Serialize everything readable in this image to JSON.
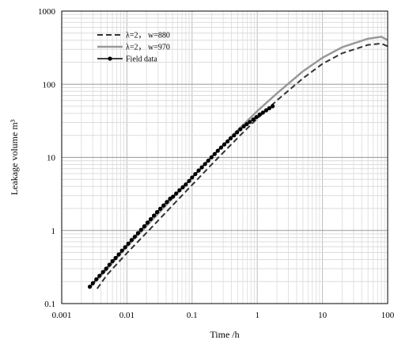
{
  "chart_data": {
    "type": "line",
    "title": "",
    "xlabel": "Time /h",
    "ylabel": "Leakage volume m³",
    "xscale": "log",
    "yscale": "log",
    "xlim": [
      0.001,
      100
    ],
    "ylim": [
      0.1,
      1000
    ],
    "x_ticks": [
      "0.001",
      "0.01",
      "0.1",
      "1",
      "10",
      "100"
    ],
    "y_ticks": [
      "0.1",
      "1",
      "10",
      "100",
      "1000"
    ],
    "grid": true,
    "legend_position": "top-left",
    "series": [
      {
        "name": "λ=2， w=880",
        "style": "dashed",
        "color": "#333333",
        "x": [
          0.0035,
          0.005,
          0.01,
          0.02,
          0.05,
          0.1,
          0.2,
          0.5,
          1,
          2,
          5,
          10,
          20,
          50,
          80,
          100
        ],
        "y": [
          0.16,
          0.25,
          0.49,
          0.93,
          2.2,
          4.2,
          8.0,
          18.5,
          34,
          60,
          120,
          190,
          265,
          345,
          360,
          330
        ]
      },
      {
        "name": "λ=2， w=970",
        "style": "solid",
        "color": "#999999",
        "x": [
          0.0028,
          0.005,
          0.01,
          0.02,
          0.05,
          0.1,
          0.2,
          0.5,
          1,
          2,
          5,
          10,
          20,
          50,
          80,
          100
        ],
        "y": [
          0.17,
          0.3,
          0.6,
          1.15,
          2.75,
          5.3,
          10.2,
          23.5,
          43,
          75,
          150,
          230,
          320,
          420,
          445,
          400
        ]
      },
      {
        "name": "Field data",
        "style": "line-marker",
        "color": "#000000",
        "x": [
          0.0027,
          0.003,
          0.0034,
          0.0038,
          0.0043,
          0.0048,
          0.0054,
          0.006,
          0.0067,
          0.0075,
          0.0084,
          0.0094,
          0.0105,
          0.0118,
          0.0132,
          0.0148,
          0.0165,
          0.0185,
          0.0207,
          0.0232,
          0.026,
          0.029,
          0.0325,
          0.0365,
          0.041,
          0.046,
          0.051,
          0.057,
          0.064,
          0.072,
          0.08,
          0.09,
          0.1,
          0.112,
          0.126,
          0.141,
          0.158,
          0.177,
          0.198,
          0.222,
          0.248,
          0.278,
          0.312,
          0.35,
          0.39,
          0.44,
          0.49,
          0.55,
          0.62,
          0.69,
          0.77,
          0.87,
          0.97,
          1.09,
          1.22,
          1.37,
          1.53,
          1.72
        ],
        "y": [
          0.17,
          0.19,
          0.215,
          0.24,
          0.27,
          0.3,
          0.34,
          0.38,
          0.42,
          0.47,
          0.53,
          0.59,
          0.66,
          0.74,
          0.82,
          0.92,
          1.02,
          1.14,
          1.28,
          1.43,
          1.6,
          1.78,
          1.98,
          2.2,
          2.45,
          2.72,
          2.9,
          3.2,
          3.55,
          3.9,
          4.25,
          4.75,
          5.3,
          5.9,
          6.6,
          7.3,
          8.1,
          9.0,
          10.0,
          11.1,
          12.3,
          13.6,
          15.0,
          16.5,
          18.2,
          20.0,
          22.0,
          24.2,
          26.5,
          28.5,
          30.5,
          33.0,
          35.5,
          38.5,
          41.0,
          44.0,
          47.0,
          50.0
        ]
      }
    ]
  }
}
